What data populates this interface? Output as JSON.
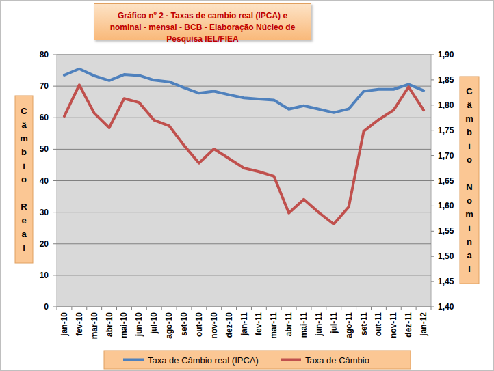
{
  "chart_data": {
    "type": "line",
    "title": "Gráfico nº 2 - Taxas de cambio real (IPCA) e nominal - mensal - BCB - Elaboração Núcleo de Pesquisa IEL/FIEA",
    "y_label": "Câmbio Real",
    "y2_label": "Câmbio Nominal",
    "categories": [
      "jan-10",
      "fev-10",
      "mar-10",
      "abr-10",
      "mai-10",
      "jun-10",
      "jul-10",
      "ago-10",
      "set-10",
      "out-10",
      "nov-10",
      "dez-10",
      "jan-11",
      "fev-11",
      "mar-11",
      "abr-11",
      "mai-11",
      "jun-11",
      "jul-11",
      "ago-11",
      "set-11",
      "out-11",
      "nov-11",
      "dez-11",
      "jan-12"
    ],
    "series": [
      {
        "name": "Taxa de Câmbio real (IPCA)",
        "color": "#4f81bd",
        "values": [
          73.5,
          75.5,
          73.3,
          71.8,
          73.7,
          73.4,
          71.9,
          71.4,
          69.5,
          67.8,
          68.4,
          67.3,
          66.3,
          65.9,
          65.6,
          62.7,
          63.8,
          62.7,
          61.6,
          62.8,
          68.4,
          69.0,
          69.0,
          70.6,
          68.6
        ]
      },
      {
        "name": "Taxa de Câmbio",
        "color": "#c0504d",
        "axis": "y2",
        "values": [
          1.778,
          1.84,
          1.784,
          1.755,
          1.813,
          1.805,
          1.77,
          1.759,
          1.72,
          1.685,
          1.713,
          1.694,
          1.675,
          1.668,
          1.659,
          1.586,
          1.613,
          1.587,
          1.564,
          1.598,
          1.748,
          1.771,
          1.79,
          1.836,
          1.79
        ]
      }
    ],
    "ylim": [
      0,
      80
    ],
    "yticks": [
      0,
      10,
      20,
      30,
      40,
      50,
      60,
      70,
      80
    ],
    "y2lim": [
      1.4,
      1.9
    ],
    "y2ticks": [
      {
        "value": 1.4,
        "label": "1,40"
      },
      {
        "value": 1.45,
        "label": "1,45"
      },
      {
        "value": 1.5,
        "label": "1,50"
      },
      {
        "value": 1.55,
        "label": "1,55"
      },
      {
        "value": 1.6,
        "label": "1,60"
      },
      {
        "value": 1.65,
        "label": "1,65"
      },
      {
        "value": 1.7,
        "label": "1,70"
      },
      {
        "value": 1.75,
        "label": "1,75"
      },
      {
        "value": 1.8,
        "label": "1,80"
      },
      {
        "value": 1.85,
        "label": "1,85"
      },
      {
        "value": 1.9,
        "label": "1,90"
      }
    ],
    "grid": true,
    "legend": "bottom"
  }
}
